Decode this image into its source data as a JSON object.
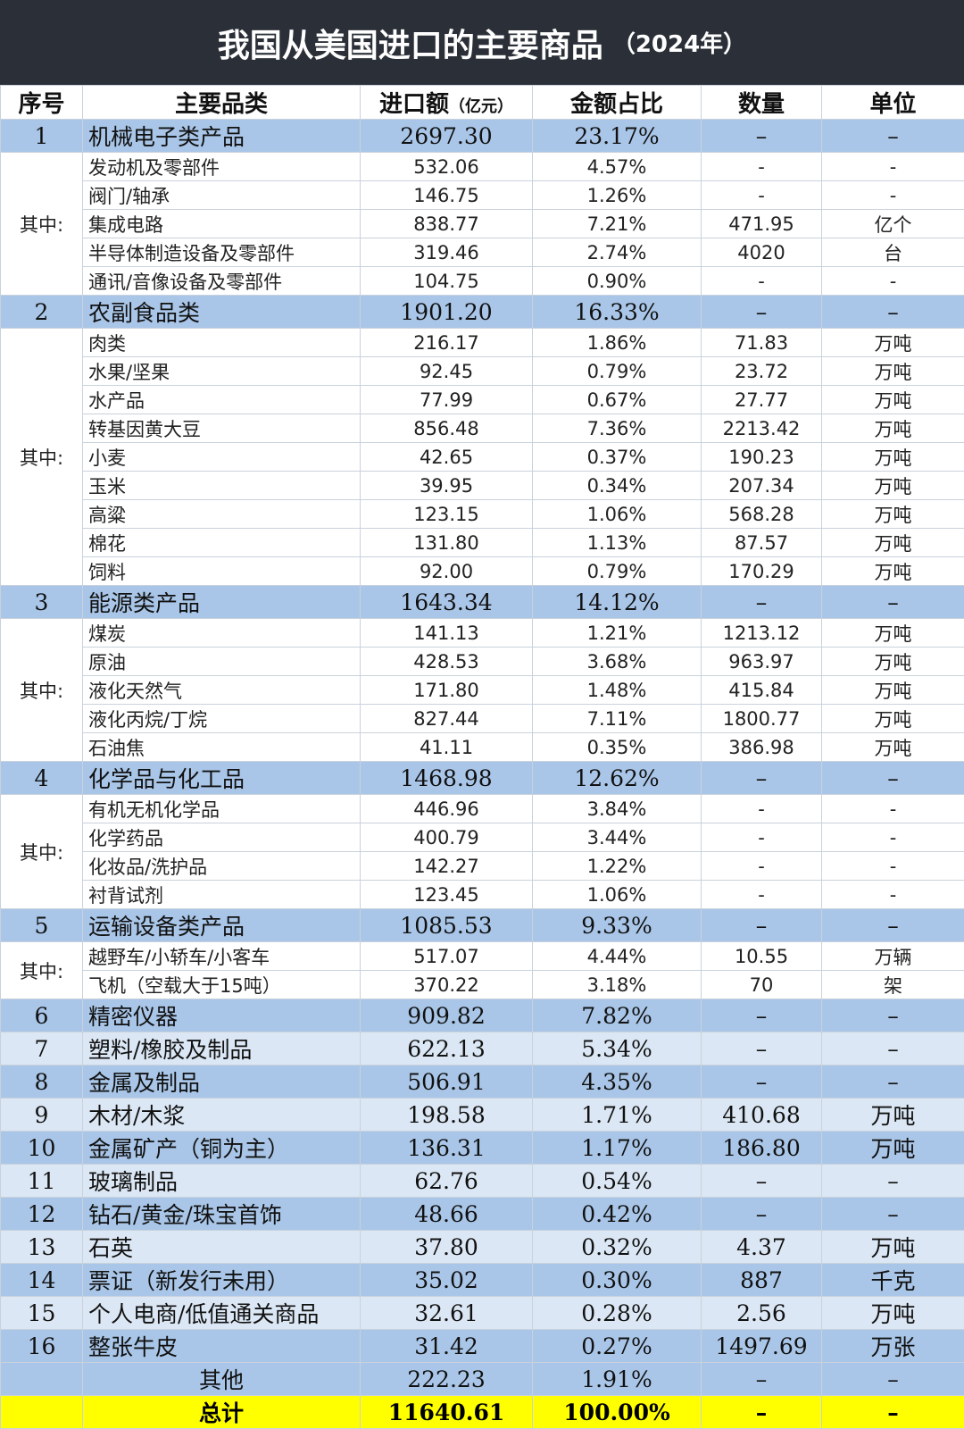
{
  "header": {
    "title": "我国从美国进口的主要商品",
    "year": "（2024年）"
  },
  "table": {
    "columns": [
      "序号",
      "主要品类",
      {
        "text": "进口额",
        "unit": "（亿元）"
      },
      "金额占比",
      "数量",
      "单位"
    ],
    "sections": [
      {
        "row": [
          "1",
          "机械电子类产品",
          "2697.30",
          "23.17%",
          "–",
          "–"
        ],
        "sub_label": "其中:",
        "sub_rows": [
          [
            "发动机及零部件",
            "532.06",
            "4.57%",
            "-",
            "-"
          ],
          [
            "阀门/轴承",
            "146.75",
            "1.26%",
            "-",
            "-"
          ],
          [
            "集成电路",
            "838.77",
            "7.21%",
            "471.95",
            "亿个"
          ],
          [
            "半导体制造设备及零部件",
            "319.46",
            "2.74%",
            "4020",
            "台"
          ],
          [
            "通讯/音像设备及零部件",
            "104.75",
            "0.90%",
            "-",
            "-"
          ]
        ]
      },
      {
        "row": [
          "2",
          "农副食品类",
          "1901.20",
          "16.33%",
          "–",
          "–"
        ],
        "sub_label": "其中:",
        "sub_rows": [
          [
            "肉类",
            "216.17",
            "1.86%",
            "71.83",
            "万吨"
          ],
          [
            "水果/坚果",
            "92.45",
            "0.79%",
            "23.72",
            "万吨"
          ],
          [
            "水产品",
            "77.99",
            "0.67%",
            "27.77",
            "万吨"
          ],
          [
            "转基因黄大豆",
            "856.48",
            "7.36%",
            "2213.42",
            "万吨"
          ],
          [
            "小麦",
            "42.65",
            "0.37%",
            "190.23",
            "万吨"
          ],
          [
            "玉米",
            "39.95",
            "0.34%",
            "207.34",
            "万吨"
          ],
          [
            "高粱",
            "123.15",
            "1.06%",
            "568.28",
            "万吨"
          ],
          [
            "棉花",
            "131.80",
            "1.13%",
            "87.57",
            "万吨"
          ],
          [
            "饲料",
            "92.00",
            "0.79%",
            "170.29",
            "万吨"
          ]
        ]
      },
      {
        "row": [
          "3",
          "能源类产品",
          "1643.34",
          "14.12%",
          "–",
          "–"
        ],
        "sub_label": "其中:",
        "sub_rows": [
          [
            "煤炭",
            "141.13",
            "1.21%",
            "1213.12",
            "万吨"
          ],
          [
            "原油",
            "428.53",
            "3.68%",
            "963.97",
            "万吨"
          ],
          [
            "液化天然气",
            "171.80",
            "1.48%",
            "415.84",
            "万吨"
          ],
          [
            "液化丙烷/丁烷",
            "827.44",
            "7.11%",
            "1800.77",
            "万吨"
          ],
          [
            "石油焦",
            "41.11",
            "0.35%",
            "386.98",
            "万吨"
          ]
        ]
      },
      {
        "row": [
          "4",
          "化学品与化工品",
          "1468.98",
          "12.62%",
          "–",
          "–"
        ],
        "sub_label": "其中:",
        "sub_rows": [
          [
            "有机无机化学品",
            "446.96",
            "3.84%",
            "-",
            "-"
          ],
          [
            "化学药品",
            "400.79",
            "3.44%",
            "-",
            "-"
          ],
          [
            "化妆品/洗护品",
            "142.27",
            "1.22%",
            "-",
            "-"
          ],
          [
            "衬背试剂",
            "123.45",
            "1.06%",
            "-",
            "-"
          ]
        ]
      },
      {
        "row": [
          "5",
          "运输设备类产品",
          "1085.53",
          "9.33%",
          "–",
          "–"
        ],
        "sub_label": "其中:",
        "sub_rows": [
          [
            "越野车/小轿车/小客车",
            "517.07",
            "4.44%",
            "10.55",
            "万辆"
          ],
          [
            "飞机（空载大于15吨）",
            "370.22",
            "3.18%",
            "70",
            "架"
          ]
        ]
      },
      {
        "row": [
          "6",
          "精密仪器",
          "909.82",
          "7.82%",
          "–",
          "–"
        ]
      },
      {
        "row": [
          "7",
          "塑料/橡胶及制品",
          "622.13",
          "5.34%",
          "–",
          "–"
        ]
      },
      {
        "row": [
          "8",
          "金属及制品",
          "506.91",
          "4.35%",
          "–",
          "–"
        ]
      },
      {
        "row": [
          "9",
          "木材/木浆",
          "198.58",
          "1.71%",
          "410.68",
          "万吨"
        ]
      },
      {
        "row": [
          "10",
          "金属矿产（铜为主）",
          "136.31",
          "1.17%",
          "186.80",
          "万吨"
        ]
      },
      {
        "row": [
          "11",
          "玻璃制品",
          "62.76",
          "0.54%",
          "–",
          "–"
        ]
      },
      {
        "row": [
          "12",
          "钻石/黄金/珠宝首饰",
          "48.66",
          "0.42%",
          "–",
          "–"
        ]
      },
      {
        "row": [
          "13",
          "石英",
          "37.80",
          "0.32%",
          "4.37",
          "万吨"
        ]
      },
      {
        "row": [
          "14",
          "票证（新发行未用）",
          "35.02",
          "0.30%",
          "887",
          "千克"
        ]
      },
      {
        "row": [
          "15",
          "个人电商/低值通关商品",
          "32.61",
          "0.28%",
          "2.56",
          "万吨"
        ]
      },
      {
        "row": [
          "16",
          "整张牛皮",
          "31.42",
          "0.27%",
          "1497.69",
          "万张"
        ]
      }
    ],
    "other": [
      "其他",
      "222.23",
      "1.91%",
      "–",
      "–"
    ],
    "total": [
      "总计",
      "11640.61",
      "100.00%",
      "–",
      "–"
    ]
  }
}
